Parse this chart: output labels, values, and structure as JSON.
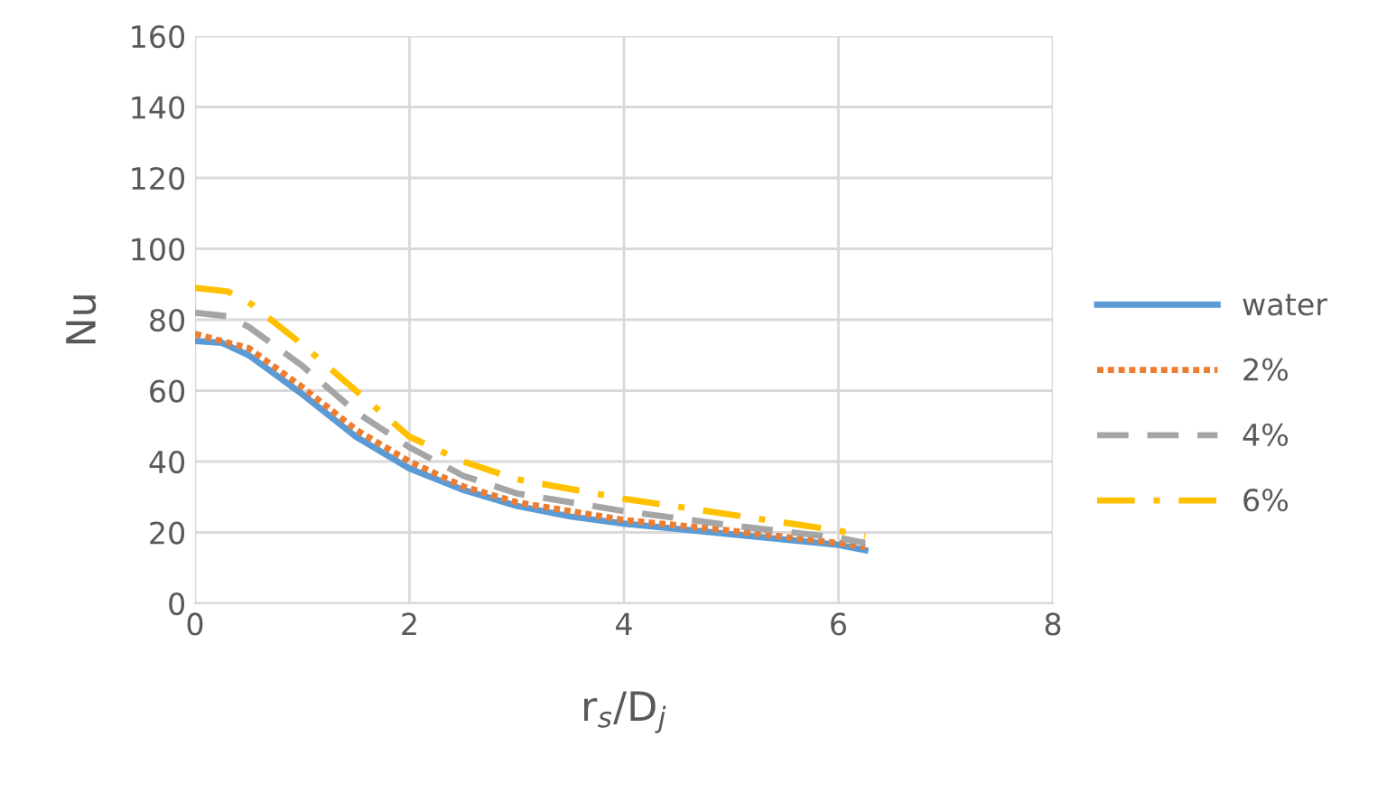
{
  "chart_data": {
    "type": "line",
    "xlabel": "r$_{s}$/D$_{j}$",
    "ylabel": "Nu",
    "xlim": [
      0,
      8
    ],
    "xticks": [
      0,
      2,
      4,
      6,
      8
    ],
    "ylim": [
      0,
      160
    ],
    "yticks": [
      0,
      20,
      40,
      60,
      80,
      100,
      120,
      140,
      160
    ],
    "grid": true,
    "legend": "right",
    "marker": "none",
    "series": [
      {
        "name": "water",
        "color": "#5b9bd5",
        "line_style": "solid",
        "x": [
          0,
          0.25,
          0.5,
          1,
          1.5,
          2,
          2.5,
          3,
          3.5,
          4,
          5,
          6,
          6.25
        ],
        "values": [
          74,
          73.5,
          70,
          59,
          47,
          38,
          32,
          27.5,
          24.5,
          22.5,
          19.5,
          16.5,
          15
        ]
      },
      {
        "name": "2%",
        "color": "#ed7d31",
        "line_style": "dotted",
        "x": [
          0,
          0.5,
          1,
          1.5,
          2,
          2.5,
          3,
          4,
          5,
          6,
          6.25
        ],
        "values": [
          76,
          72,
          61,
          49,
          40,
          33,
          28.5,
          23.5,
          20.5,
          17,
          16
        ]
      },
      {
        "name": "4%",
        "color": "#a5a5a5",
        "line_style": "dashed",
        "x": [
          0,
          0.3,
          0.5,
          1,
          1.5,
          2,
          2.5,
          3,
          4,
          5,
          6,
          6.25
        ],
        "values": [
          82,
          81,
          78,
          67,
          54,
          44,
          36,
          31,
          26,
          22,
          18.5,
          17
        ]
      },
      {
        "name": "6%",
        "color": "#ffc000",
        "line_style": "dashdot",
        "x": [
          0,
          0.3,
          0.5,
          1,
          1.5,
          2,
          2.5,
          3,
          4,
          5,
          6,
          6.25
        ],
        "values": [
          89,
          88,
          85,
          73,
          60,
          47,
          40,
          35,
          29.5,
          25,
          20.5,
          19
        ]
      }
    ]
  }
}
